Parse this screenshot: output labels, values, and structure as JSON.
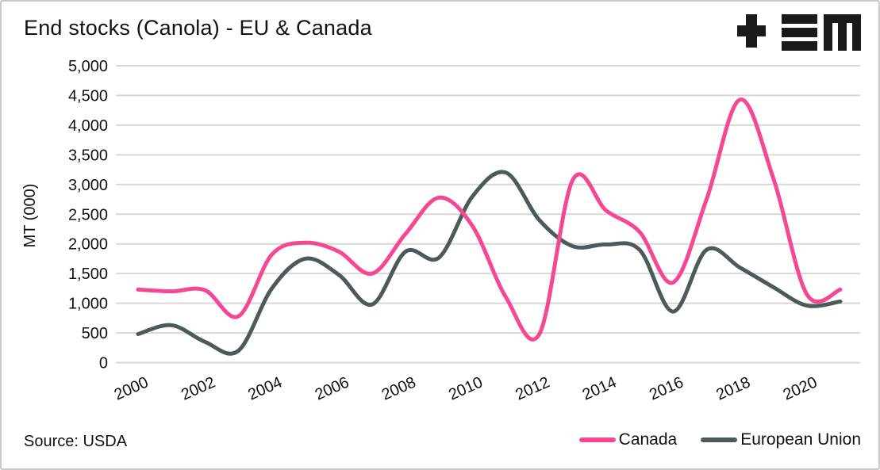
{
  "chart_data": {
    "type": "line",
    "title": "End stocks (Canola) - EU & Canada",
    "ylabel": "MT (000)",
    "xlabel": "",
    "source": "Source: USDA",
    "grid": "horizontal",
    "legend_position": "bottom-right",
    "ylim": [
      0,
      5000
    ],
    "y_ticks": [
      0,
      500,
      1000,
      1500,
      2000,
      2500,
      3000,
      3500,
      4000,
      4500,
      5000
    ],
    "x": [
      2000,
      2001,
      2002,
      2003,
      2004,
      2005,
      2006,
      2007,
      2008,
      2009,
      2010,
      2011,
      2012,
      2013,
      2014,
      2015,
      2016,
      2017,
      2018,
      2019,
      2020,
      2021
    ],
    "x_tick_labels": [
      2000,
      2002,
      2004,
      2006,
      2008,
      2010,
      2012,
      2014,
      2016,
      2018,
      2020
    ],
    "series": [
      {
        "name": "Canada",
        "color": "#F44894",
        "values": [
          1230,
          1200,
          1220,
          780,
          1820,
          2020,
          1870,
          1500,
          2170,
          2780,
          2300,
          1100,
          480,
          3080,
          2560,
          2200,
          1350,
          2750,
          4430,
          3100,
          1150,
          1230
        ]
      },
      {
        "name": "European Union",
        "color": "#4D5A5C",
        "values": [
          480,
          630,
          350,
          200,
          1250,
          1750,
          1480,
          980,
          1870,
          1770,
          2800,
          3200,
          2400,
          1960,
          1990,
          1900,
          860,
          1900,
          1600,
          1270,
          960,
          1030
        ]
      }
    ],
    "colors": {
      "grid": "#d7d7d7",
      "text": "#111111",
      "border": "#c9c9c9",
      "logo": "#1a1a1a"
    }
  }
}
